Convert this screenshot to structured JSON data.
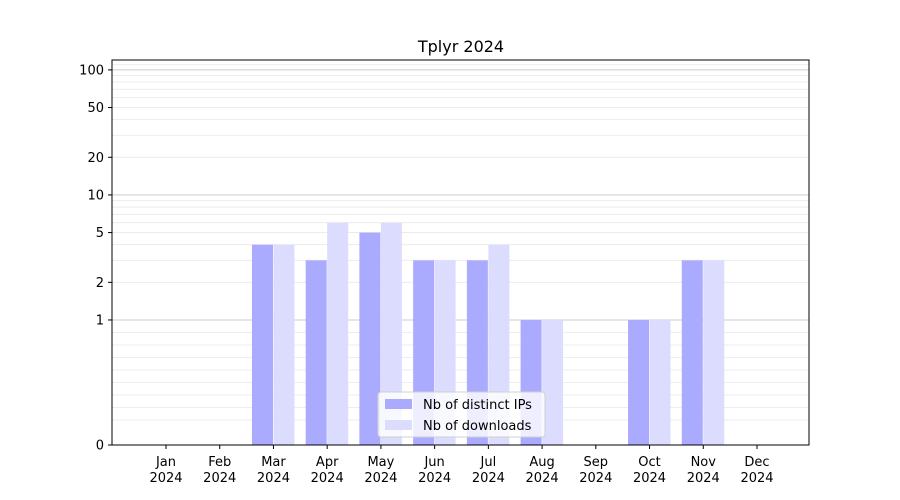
{
  "chart_data": {
    "type": "bar",
    "title": "Tplyr 2024",
    "xlabel": "",
    "ylabel": "",
    "y_scale": "symlog",
    "ylim": [
      0,
      120
    ],
    "y_ticks": [
      0,
      1,
      2,
      5,
      10,
      20,
      50,
      100
    ],
    "categories": [
      [
        "Jan",
        "2024"
      ],
      [
        "Feb",
        "2024"
      ],
      [
        "Mar",
        "2024"
      ],
      [
        "Apr",
        "2024"
      ],
      [
        "May",
        "2024"
      ],
      [
        "Jun",
        "2024"
      ],
      [
        "Jul",
        "2024"
      ],
      [
        "Aug",
        "2024"
      ],
      [
        "Sep",
        "2024"
      ],
      [
        "Oct",
        "2024"
      ],
      [
        "Nov",
        "2024"
      ],
      [
        "Dec",
        "2024"
      ]
    ],
    "series": [
      {
        "name": "Nb of distinct IPs",
        "color": "#aaaaff",
        "values": [
          0,
          0,
          4,
          3,
          5,
          3,
          3,
          1,
          0,
          1,
          3,
          0
        ]
      },
      {
        "name": "Nb of downloads",
        "color": "#dcdcff",
        "values": [
          0,
          0,
          4,
          6,
          6,
          3,
          4,
          1,
          0,
          1,
          3,
          0
        ]
      }
    ],
    "legend": "lower-center",
    "grid": true
  }
}
